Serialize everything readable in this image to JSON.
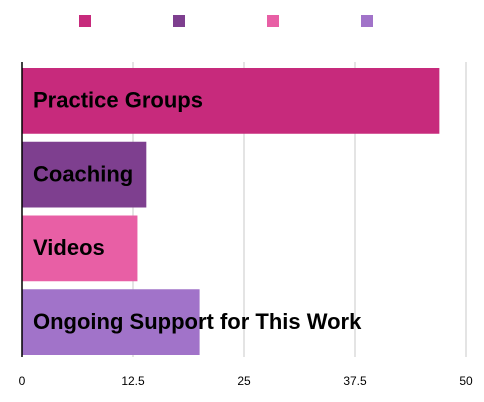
{
  "chart_data": {
    "type": "hbar",
    "categories": [
      "Practice Groups",
      "Coaching",
      "Videos",
      "Ongoing Support for This Work"
    ],
    "values": [
      47,
      14,
      13,
      20
    ],
    "colors": [
      "#c72a7c",
      "#7e3f8f",
      "#e85fa5",
      "#a173c9"
    ],
    "xlim": [
      0,
      50
    ],
    "xticks": [
      0,
      12.5,
      25,
      37.5,
      50
    ],
    "grid": true,
    "legend": "top"
  }
}
